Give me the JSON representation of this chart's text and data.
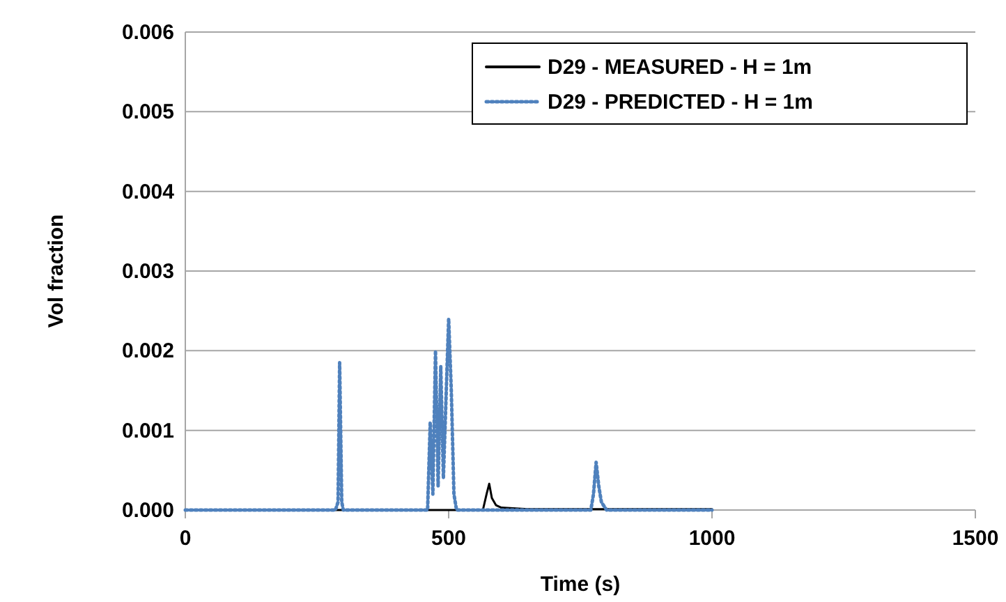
{
  "chart_data": {
    "type": "line",
    "xlabel": "Time (s)",
    "ylabel": "Vol fraction",
    "xlim": [
      0,
      1500
    ],
    "xticks": [
      0,
      500,
      1000,
      1500
    ],
    "ylim": [
      0,
      0.006
    ],
    "yticks": [
      {
        "value": 0,
        "label": "0.000"
      },
      {
        "value": 0.001,
        "label": "0.001"
      },
      {
        "value": 0.002,
        "label": "0.002"
      },
      {
        "value": 0.003,
        "label": "0.003"
      },
      {
        "value": 0.004,
        "label": "0.004"
      },
      {
        "value": 0.005,
        "label": "0.005"
      },
      {
        "value": 0.006,
        "label": "0.006"
      }
    ],
    "grid": "y",
    "legend": "top right",
    "series": [
      {
        "name": "D29 - MEASURED - H = 1m",
        "color": "#000000",
        "line_style": "solid",
        "x": [
          0,
          565,
          572,
          577,
          582,
          590,
          600,
          650,
          1000
        ],
        "values": [
          0,
          0,
          0.0002,
          0.00033,
          0.00015,
          6e-05,
          3e-05,
          1e-05,
          1e-05
        ]
      },
      {
        "name": "D29 - PREDICTED - H = 1m",
        "color": "#4f81bd",
        "line_style": "dotted",
        "x": [
          0,
          285,
          290,
          293,
          297,
          300,
          460,
          465,
          470,
          475,
          480,
          485,
          490,
          495,
          500,
          505,
          510,
          515,
          770,
          775,
          780,
          785,
          790,
          800,
          1000
        ],
        "values": [
          0,
          0,
          0.0001,
          0.00185,
          0.0001,
          0,
          0,
          0.0011,
          0.0002,
          0.002,
          0.0003,
          0.0018,
          0.0004,
          0.0014,
          0.0024,
          0.0015,
          0.0002,
          0,
          0,
          0.0002,
          0.0006,
          0.0003,
          0.0001,
          0,
          0
        ]
      }
    ]
  }
}
